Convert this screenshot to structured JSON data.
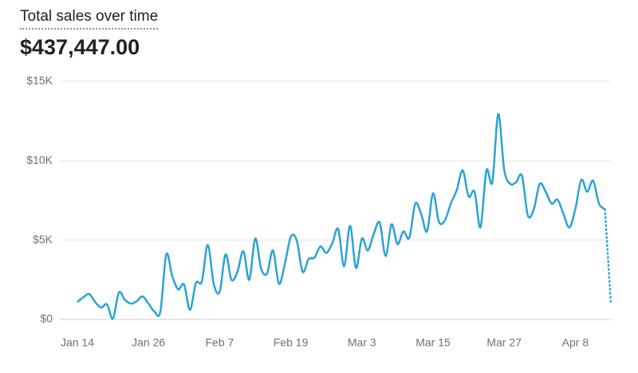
{
  "chart_data": {
    "type": "line",
    "title": "Total sales over time",
    "total": "$437,447.00",
    "categories": [
      "Jan 14",
      null,
      null,
      null,
      null,
      null,
      null,
      null,
      null,
      null,
      null,
      null,
      "Jan 26",
      null,
      null,
      null,
      null,
      null,
      null,
      null,
      null,
      null,
      null,
      null,
      "Feb 7",
      null,
      null,
      null,
      null,
      null,
      null,
      null,
      null,
      null,
      null,
      null,
      "Feb 19",
      null,
      null,
      null,
      null,
      null,
      null,
      null,
      null,
      null,
      null,
      null,
      "Mar 3",
      null,
      null,
      null,
      null,
      null,
      null,
      null,
      null,
      null,
      null,
      null,
      "Mar 15",
      null,
      null,
      null,
      null,
      null,
      null,
      null,
      null,
      null,
      null,
      null,
      "Mar 27",
      null,
      null,
      null,
      null,
      null,
      null,
      null,
      null,
      null,
      null,
      null,
      "Apr 8",
      null,
      null,
      null,
      null,
      null,
      null
    ],
    "series": [
      {
        "name": "Total sales",
        "color": "#2aa3d6",
        "values": [
          1100,
          1400,
          1600,
          1100,
          750,
          950,
          50,
          1700,
          1250,
          1000,
          1150,
          1450,
          1000,
          500,
          500,
          4100,
          2750,
          1900,
          2200,
          600,
          2300,
          2400,
          4700,
          2250,
          1750,
          4100,
          2500,
          3000,
          4300,
          2500,
          5100,
          3200,
          2900,
          4350,
          2250,
          3500,
          5200,
          5000,
          3000,
          3800,
          3900,
          4600,
          4200,
          4800,
          5700,
          3350,
          5900,
          3250,
          5100,
          4350,
          5400,
          6100,
          4000,
          6000,
          4750,
          5550,
          5150,
          7300,
          6650,
          5550,
          7950,
          6150,
          6250,
          7300,
          8150,
          9400,
          7750,
          8050,
          5800,
          9400,
          8650,
          12950,
          9450,
          8550,
          8650,
          9050,
          6550,
          6950,
          8550,
          8050,
          7300,
          7550,
          6650,
          5800,
          6950,
          8800,
          8050,
          8750,
          7300,
          6950,
          1000
        ]
      }
    ],
    "ylim": [
      0,
      15000
    ],
    "yticks": [
      {
        "value": 0,
        "label": "$0"
      },
      {
        "value": 5000,
        "label": "$5K"
      },
      {
        "value": 10000,
        "label": "$10K"
      },
      {
        "value": 15000,
        "label": "$15K"
      }
    ],
    "grid": true
  }
}
